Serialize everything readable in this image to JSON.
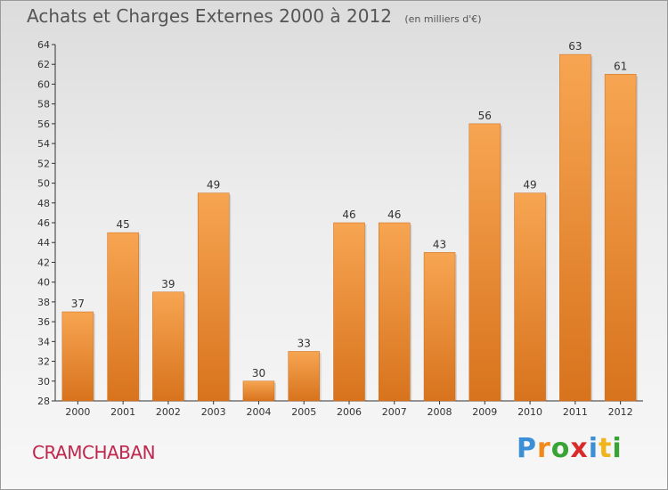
{
  "title": "Achats et Charges Externes 2000 à 2012",
  "unit": "(en milliers d'€)",
  "place": "CRAMCHABAN",
  "logo": {
    "text": "Proxiti",
    "letters": [
      {
        "ch": "P",
        "color": "#3a8fd6"
      },
      {
        "ch": "r",
        "color": "#f08a1c"
      },
      {
        "ch": "o",
        "color": "#3aa335"
      },
      {
        "ch": "x",
        "color": "#d92b2b"
      },
      {
        "ch": "i",
        "color": "#3a8fd6"
      },
      {
        "ch": "t",
        "color": "#f0b41c"
      },
      {
        "ch": "i",
        "color": "#3aa335"
      }
    ]
  },
  "chart_data": {
    "type": "bar",
    "title": "Achats et Charges Externes 2000 à 2012",
    "subtitle": "(en milliers d'€)",
    "xlabel": "",
    "ylabel": "",
    "categories": [
      "2000",
      "2001",
      "2002",
      "2003",
      "2004",
      "2005",
      "2006",
      "2007",
      "2008",
      "2009",
      "2010",
      "2011",
      "2012"
    ],
    "values": [
      37,
      45,
      39,
      49,
      30,
      33,
      46,
      46,
      43,
      56,
      49,
      63,
      61
    ],
    "ylim": [
      28,
      64
    ],
    "ytick_step": 2,
    "grid": false,
    "bar_color": "#f0963a"
  }
}
